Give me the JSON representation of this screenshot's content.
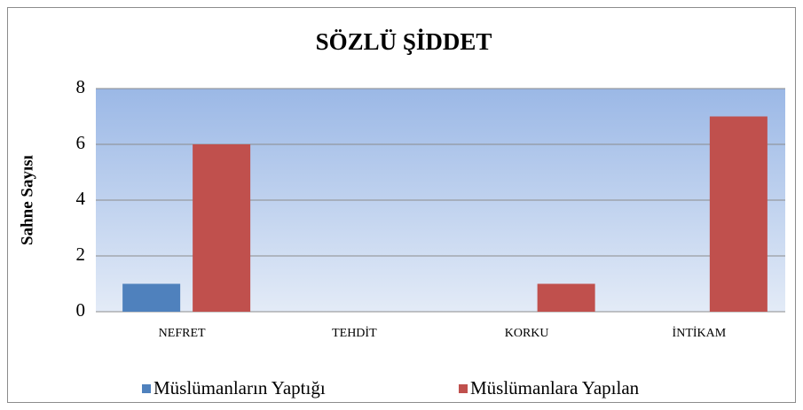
{
  "chart_data": {
    "type": "bar",
    "title": "SÖZLÜ ŞİDDET",
    "y_label": "Sahne Sayısı",
    "categories": [
      "NEFRET",
      "TEHDİT",
      "KORKU",
      "İNTİKAM"
    ],
    "series": [
      {
        "name": "Müslümanların Yaptığı",
        "color": "#4f81bd",
        "values": [
          1,
          0,
          0,
          0
        ]
      },
      {
        "name": "Müslümanlara Yapılan",
        "color": "#c0504d",
        "values": [
          6,
          0,
          1,
          7
        ]
      }
    ],
    "ylim": [
      0,
      8
    ],
    "yticks": [
      0,
      2,
      4,
      6,
      8
    ],
    "grid": true,
    "legend": "bottom"
  }
}
